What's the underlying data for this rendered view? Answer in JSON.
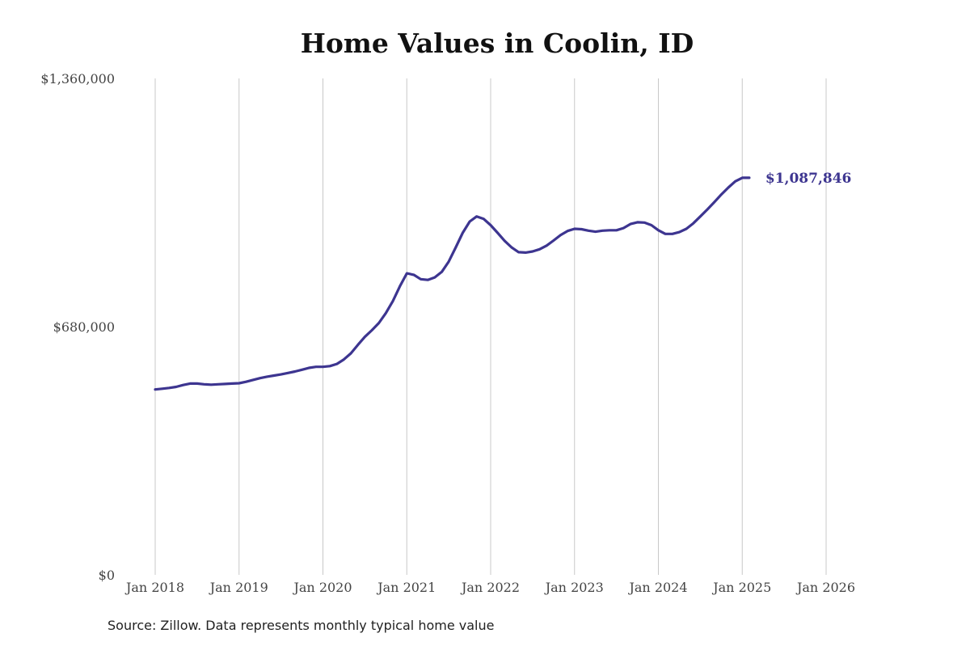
{
  "chart_data": {
    "type": "line",
    "title": "Home Values in Coolin, ID",
    "source": "Source: Zillow. Data represents monthly typical home value",
    "xlabel": "",
    "ylabel": "",
    "ylim": [
      0,
      1360000
    ],
    "yticks": [
      {
        "value": 0,
        "label": "$0"
      },
      {
        "value": 680000,
        "label": "$680,000"
      },
      {
        "value": 1360000,
        "label": "$1,360,000"
      }
    ],
    "xticks": [
      "Jan 2018",
      "Jan 2019",
      "Jan 2020",
      "Jan 2021",
      "Jan 2022",
      "Jan 2023",
      "Jan 2024",
      "Jan 2025",
      "Jan 2026"
    ],
    "x_start_year": 2018,
    "grid": "vertical",
    "line_color": "#3d3590",
    "end_label": "$1,087,846",
    "series": [
      {
        "values": [
          508000,
          510000,
          512000,
          515000,
          520000,
          524000,
          524000,
          522000,
          521000,
          522000,
          523000,
          524000,
          525000,
          529000,
          534000,
          539000,
          543000,
          546000,
          549000,
          553000,
          557000,
          562000,
          567000,
          570000,
          570000,
          572000,
          578000,
          590000,
          607000,
          630000,
          652000,
          670000,
          690000,
          717000,
          750000,
          790000,
          826000,
          822000,
          810000,
          808000,
          815000,
          830000,
          858000,
          897000,
          937000,
          968000,
          982000,
          975000,
          958000,
          937000,
          915000,
          897000,
          884000,
          883000,
          886000,
          892000,
          902000,
          916000,
          931000,
          942000,
          948000,
          947000,
          943000,
          940000,
          943000,
          944000,
          944000,
          950000,
          961000,
          966000,
          965000,
          958000,
          944000,
          934000,
          934000,
          939000,
          948000,
          963000,
          982000,
          1001000,
          1021000,
          1042000,
          1061000,
          1078000,
          1087846,
          1087846
        ]
      }
    ]
  }
}
